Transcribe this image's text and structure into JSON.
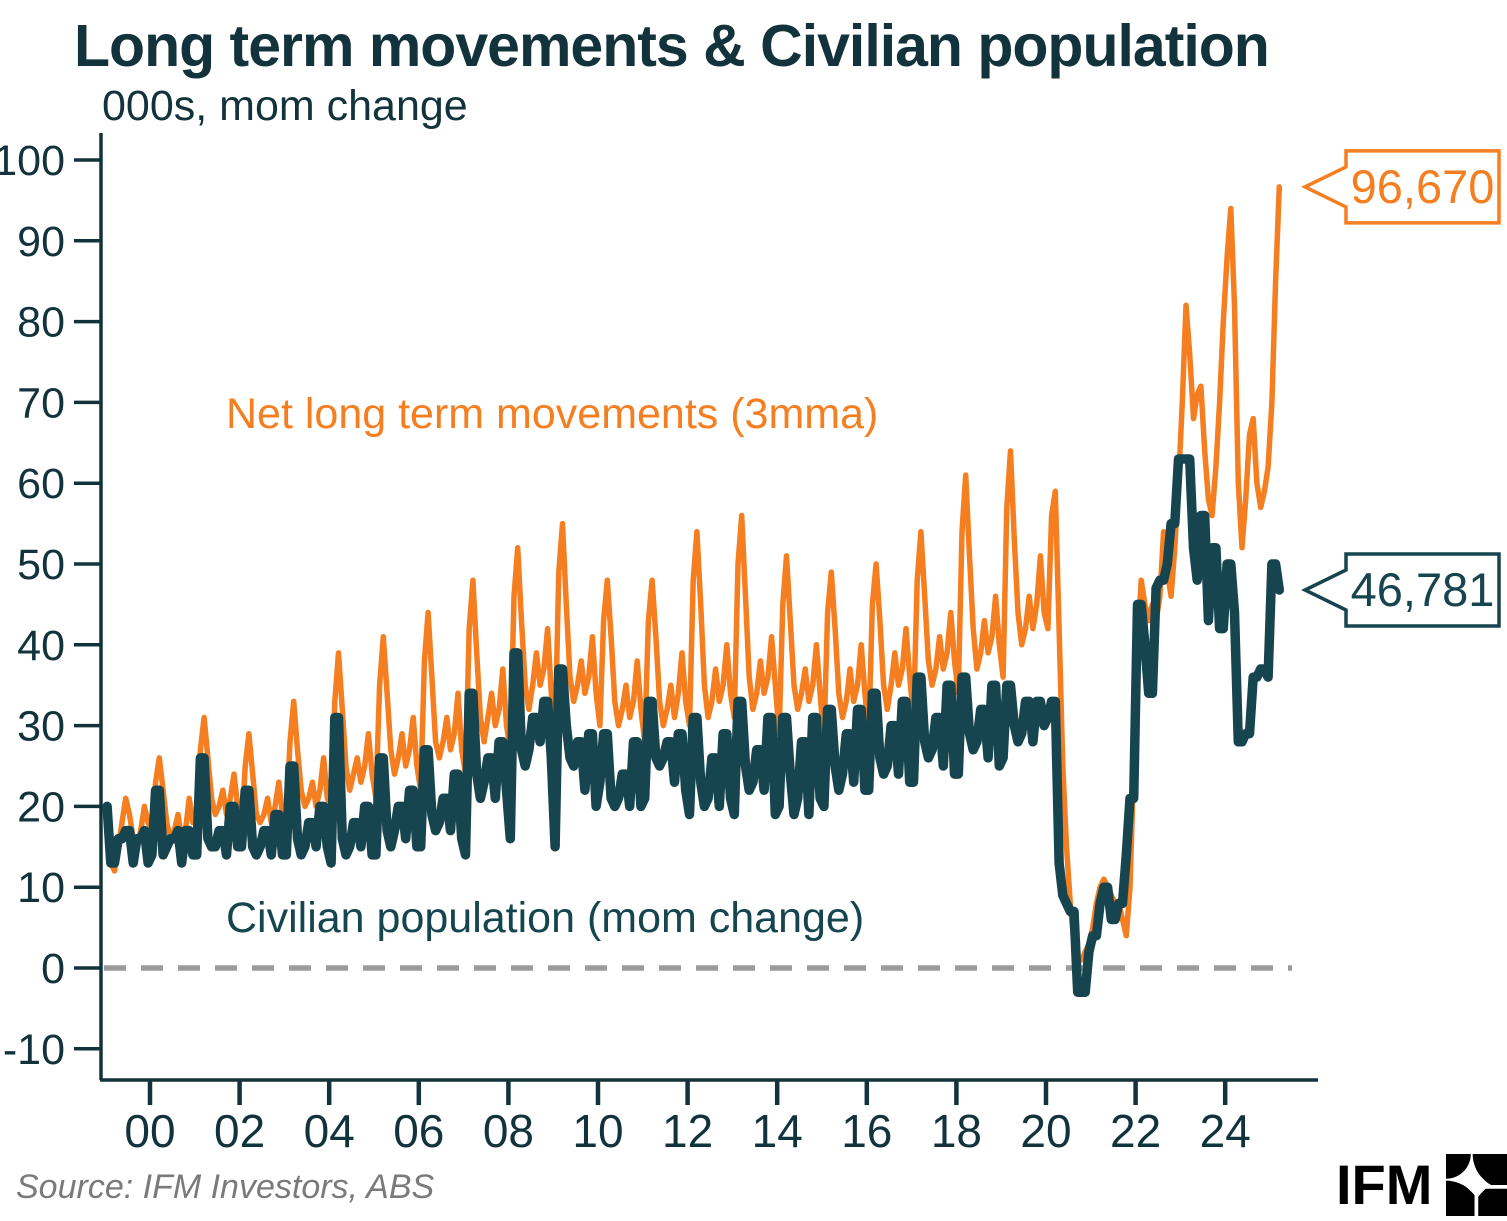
{
  "header": {
    "title": "Long term movements & Civilian population",
    "subtitle": "000s, mom change"
  },
  "series_labels": [
    {
      "text": "Net long term movements (3mma)",
      "color": "#F57E20"
    },
    {
      "text": "Civilian population (mom change)",
      "color": "#15454F"
    }
  ],
  "footer": {
    "source": "Source: IFM Investors, ABS",
    "logo_text": "IFM"
  },
  "colors": {
    "orange": "#F57E20",
    "teal": "#16454F",
    "text": "#12333B",
    "axis": "#12333B",
    "zero_dash": "#9B9B9B",
    "source_gray": "#7A7A7A",
    "logo_black": "#000000",
    "background": "#FFFFFF"
  },
  "chart_data": {
    "type": "line",
    "title": "Long term movements & Civilian population",
    "unit_label": "000s, mom change",
    "frequency": "monthly",
    "start": {
      "year": 1999,
      "month": 1
    },
    "x_axis": {
      "tick_years": [
        2000,
        2002,
        2004,
        2006,
        2008,
        2010,
        2012,
        2014,
        2016,
        2018,
        2020,
        2022,
        2024
      ],
      "tick_labels": [
        "00",
        "02",
        "04",
        "06",
        "08",
        "10",
        "12",
        "14",
        "16",
        "18",
        "20",
        "22",
        "24"
      ]
    },
    "y_axis": {
      "ticks": [
        100,
        90,
        80,
        70,
        60,
        50,
        40,
        30,
        20,
        10,
        0,
        -10
      ],
      "range": [
        -14,
        103
      ]
    },
    "zero_line": {
      "value": 0,
      "style": "dashed"
    },
    "legend_position": "inline-labels",
    "grid": false,
    "series": [
      {
        "name": "Net long term movements (3mma)",
        "color": "#F57E20",
        "stroke_width": 5.5,
        "end_callout": "96,670",
        "last_value": 96.67,
        "values": [
          17,
          13,
          12,
          15,
          18,
          21,
          19,
          16,
          15,
          17,
          20,
          18,
          17,
          23,
          26,
          22,
          18,
          16,
          17,
          19,
          16,
          17,
          21,
          18,
          18,
          27,
          31,
          26,
          21,
          19,
          20,
          22,
          19,
          21,
          24,
          20,
          17,
          25,
          29,
          24,
          19,
          18,
          19,
          21,
          18,
          20,
          23,
          19,
          18,
          28,
          33,
          27,
          22,
          20,
          21,
          23,
          20,
          22,
          26,
          21,
          20,
          33,
          39,
          32,
          25,
          22,
          24,
          26,
          23,
          25,
          29,
          24,
          21,
          35,
          41,
          34,
          27,
          24,
          26,
          29,
          25,
          27,
          31,
          25,
          22,
          38,
          44,
          36,
          28,
          26,
          28,
          31,
          27,
          29,
          34,
          27,
          24,
          42,
          48,
          39,
          31,
          28,
          31,
          34,
          30,
          32,
          37,
          30,
          27,
          46,
          52,
          43,
          35,
          32,
          35,
          39,
          35,
          37,
          42,
          34,
          29,
          49,
          55,
          45,
          36,
          33,
          35,
          38,
          34,
          36,
          41,
          34,
          30,
          43,
          48,
          41,
          33,
          30,
          32,
          35,
          31,
          33,
          38,
          32,
          28,
          43,
          48,
          41,
          33,
          30,
          32,
          35,
          31,
          34,
          39,
          33,
          30,
          48,
          54,
          45,
          35,
          31,
          33,
          37,
          33,
          35,
          40,
          34,
          31,
          50,
          56,
          46,
          36,
          32,
          34,
          38,
          34,
          36,
          41,
          35,
          29,
          45,
          51,
          43,
          35,
          32,
          34,
          37,
          33,
          35,
          40,
          34,
          28,
          44,
          49,
          42,
          34,
          31,
          33,
          37,
          33,
          35,
          40,
          34,
          29,
          45,
          50,
          43,
          35,
          32,
          35,
          39,
          35,
          37,
          42,
          36,
          31,
          48,
          54,
          46,
          38,
          35,
          37,
          41,
          37,
          39,
          44,
          38,
          34,
          54,
          61,
          51,
          42,
          37,
          39,
          43,
          39,
          41,
          46,
          40,
          36,
          57,
          64,
          53,
          44,
          40,
          42,
          46,
          42,
          45,
          51,
          44,
          42,
          56,
          59,
          42,
          25,
          15,
          8,
          3,
          1,
          1,
          2,
          3,
          5,
          8,
          10,
          11,
          10,
          9,
          8,
          8,
          6,
          4,
          10,
          25,
          40,
          48,
          45,
          43,
          45,
          43,
          46,
          54,
          49,
          46,
          52,
          60,
          70,
          82,
          76,
          68,
          71,
          72,
          64,
          58,
          56,
          62,
          70,
          80,
          88,
          94,
          82,
          60,
          52,
          58,
          66,
          68,
          60,
          57,
          59,
          62,
          70,
          85,
          96.67
        ]
      },
      {
        "name": "Civilian population (mom change)",
        "color": "#16454F",
        "stroke_width": 9.5,
        "end_callout": "46,781",
        "last_value": 46.781,
        "values": [
          20,
          13,
          13,
          16,
          16,
          17,
          17,
          13,
          16,
          16,
          17,
          13,
          14,
          22,
          22,
          14,
          15,
          16,
          16,
          17,
          13,
          17,
          17,
          14,
          14,
          26,
          26,
          16,
          15,
          15,
          17,
          17,
          14,
          20,
          20,
          15,
          15,
          22,
          22,
          15,
          14,
          15,
          17,
          17,
          14,
          19,
          19,
          14,
          14,
          25,
          25,
          16,
          14,
          15,
          18,
          18,
          15,
          20,
          20,
          15,
          13,
          31,
          31,
          16,
          14,
          15,
          18,
          18,
          15,
          20,
          20,
          14,
          14,
          26,
          26,
          17,
          15,
          17,
          20,
          20,
          16,
          22,
          22,
          15,
          15,
          27,
          27,
          19,
          17,
          18,
          21,
          21,
          17,
          24,
          24,
          16,
          14,
          34,
          34,
          24,
          21,
          23,
          26,
          26,
          21,
          28,
          28,
          22,
          16,
          39,
          39,
          27,
          25,
          27,
          31,
          31,
          28,
          33,
          33,
          26,
          15,
          37,
          37,
          30,
          26,
          25,
          28,
          28,
          22,
          29,
          29,
          20,
          23,
          29,
          29,
          21,
          20,
          21,
          24,
          24,
          20,
          28,
          28,
          20,
          21,
          33,
          33,
          26,
          25,
          26,
          28,
          28,
          23,
          29,
          29,
          22,
          19,
          31,
          31,
          23,
          20,
          21,
          26,
          26,
          20,
          29,
          29,
          21,
          19,
          33,
          33,
          25,
          22,
          23,
          27,
          27,
          22,
          31,
          31,
          19,
          20,
          31,
          31,
          24,
          19,
          21,
          28,
          28,
          19,
          31,
          31,
          21,
          20,
          32,
          32,
          25,
          22,
          24,
          29,
          29,
          23,
          32,
          32,
          22,
          22,
          34,
          34,
          26,
          24,
          25,
          30,
          30,
          24,
          33,
          33,
          23,
          23,
          36,
          36,
          28,
          26,
          27,
          31,
          31,
          25,
          35,
          35,
          24,
          24,
          36,
          36,
          29,
          27,
          28,
          32,
          32,
          26,
          35,
          35,
          25,
          26,
          35,
          35,
          30,
          28,
          29,
          33,
          33,
          28,
          33,
          33,
          30,
          31,
          33,
          33,
          13,
          9,
          8,
          7,
          7,
          -3,
          -3,
          -3,
          2,
          4,
          4,
          8,
          10,
          10,
          6,
          6,
          8,
          8,
          14,
          21,
          21,
          45,
          45,
          40,
          34,
          34,
          47,
          48,
          48,
          50,
          55,
          55,
          63,
          63,
          63,
          63,
          52,
          48,
          56,
          56,
          43,
          52,
          52,
          42,
          42,
          50,
          50,
          44,
          28,
          28,
          29,
          29,
          36,
          36,
          37,
          37,
          36,
          50,
          50,
          46.781
        ]
      }
    ]
  }
}
